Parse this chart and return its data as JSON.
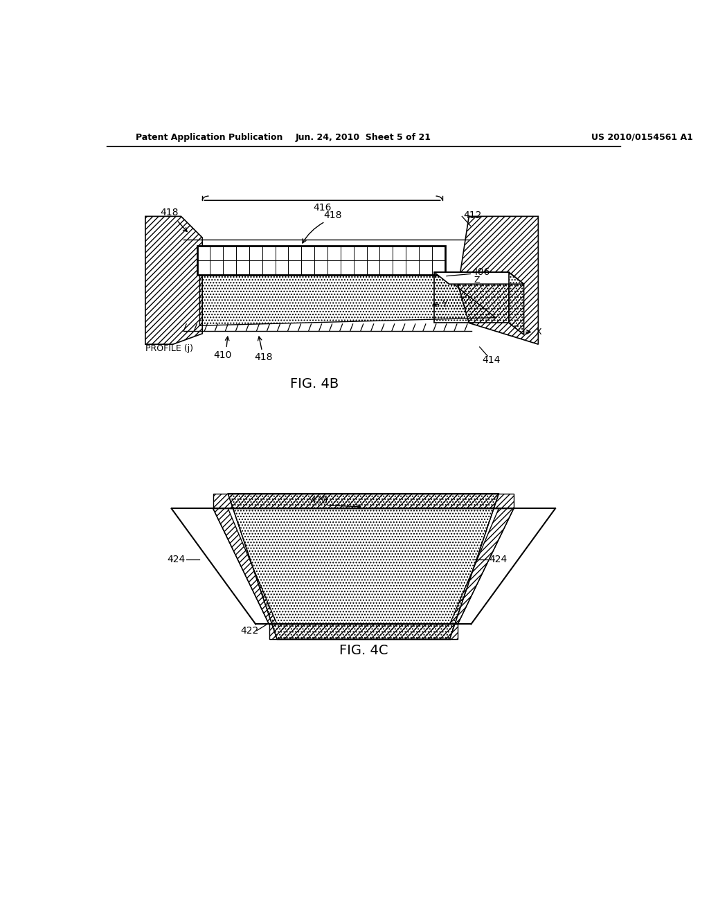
{
  "background_color": "#ffffff",
  "header_left": "Patent Application Publication",
  "header_center": "Jun. 24, 2010  Sheet 5 of 21",
  "header_right": "US 2010/0154561 A1",
  "fig4b_label": "FIG. 4B",
  "fig4c_label": "FIG. 4C"
}
